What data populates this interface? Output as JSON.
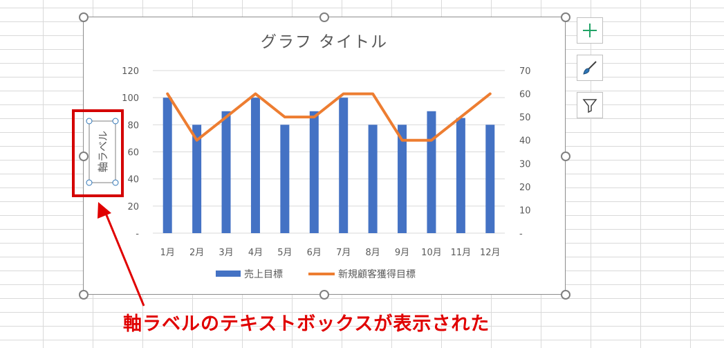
{
  "chart_data": {
    "type": "bar+line",
    "title": "グラフ タイトル",
    "categories": [
      "1月",
      "2月",
      "3月",
      "4月",
      "5月",
      "6月",
      "7月",
      "8月",
      "9月",
      "10月",
      "11月",
      "12月"
    ],
    "series": [
      {
        "name": "売上目標",
        "type": "bar",
        "axis": "left",
        "color": "#4472c4",
        "values": [
          100,
          80,
          90,
          100,
          80,
          90,
          100,
          80,
          80,
          90,
          85,
          80
        ]
      },
      {
        "name": "新規顧客獲得目標",
        "type": "line",
        "axis": "right",
        "color": "#ed7d31",
        "values": [
          60,
          40,
          50,
          60,
          50,
          50,
          60,
          60,
          40,
          40,
          50,
          60
        ]
      }
    ],
    "y_left": {
      "ylim": [
        0,
        120
      ],
      "ticks": [
        0,
        20,
        40,
        60,
        80,
        100,
        120
      ],
      "tick_labels": [
        "-",
        "20",
        "40",
        "60",
        "80",
        "100",
        "120"
      ]
    },
    "y_right": {
      "ylim": [
        0,
        70
      ],
      "ticks": [
        0,
        10,
        20,
        30,
        40,
        50,
        60,
        70
      ],
      "tick_labels": [
        "-",
        "10",
        "20",
        "30",
        "40",
        "50",
        "60",
        "70"
      ]
    },
    "axis_label_placeholder": "軸ラベル",
    "legend_position": "bottom",
    "grid": true
  },
  "annotation": {
    "callout": "軸ラベルのテキストボックスが表示された",
    "highlight_color": "#d40000"
  },
  "side_buttons": [
    {
      "name": "chart-elements-button",
      "icon": "plus-icon"
    },
    {
      "name": "chart-styles-button",
      "icon": "brush-icon"
    },
    {
      "name": "chart-filters-button",
      "icon": "filter-icon"
    }
  ]
}
